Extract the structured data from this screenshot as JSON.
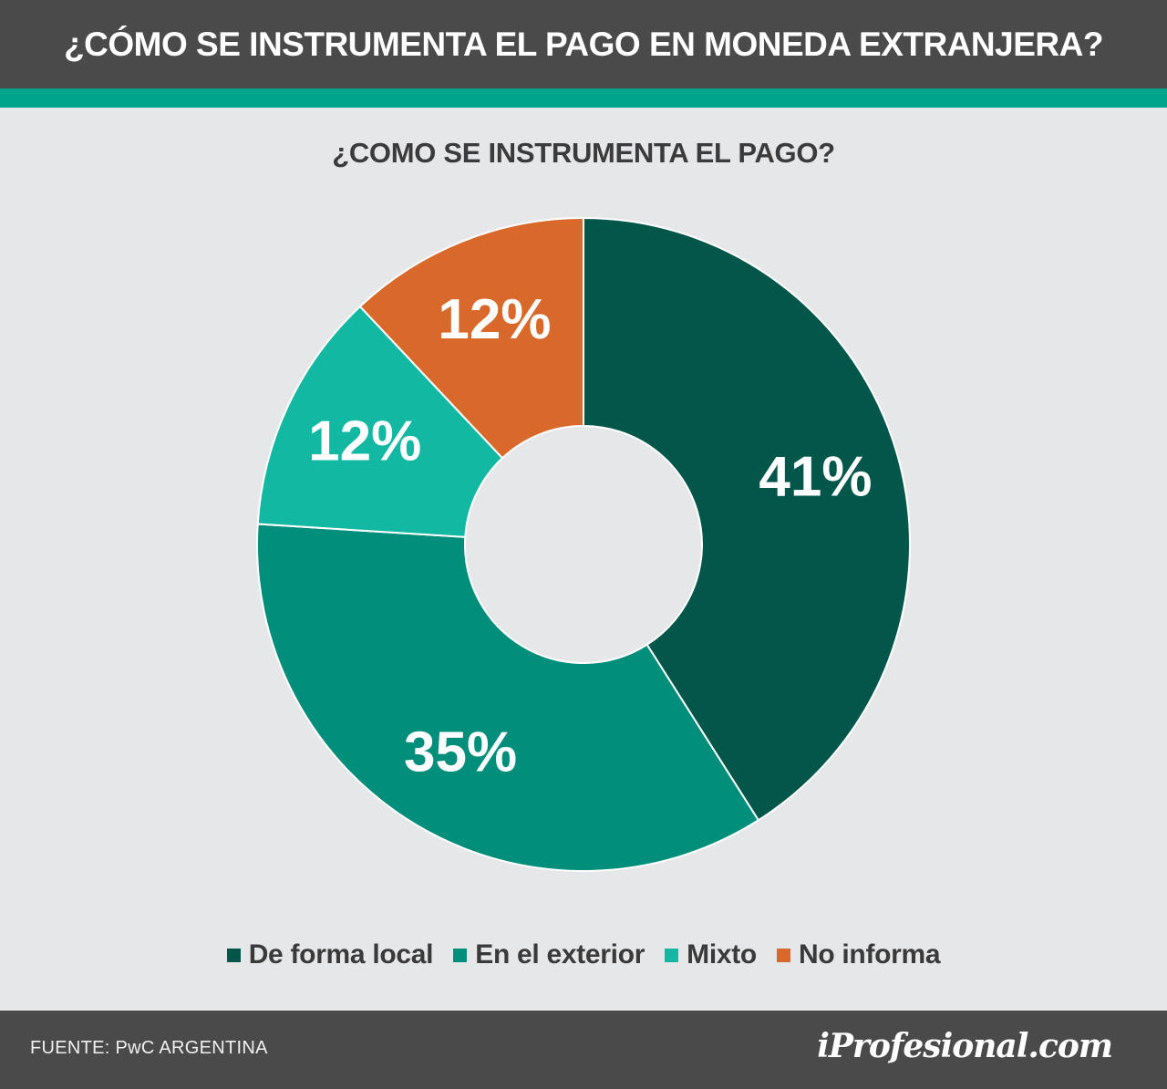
{
  "header": {
    "title": "¿CÓMO SE INSTRUMENTA EL PAGO EN MONEDA EXTRANJERA?"
  },
  "chart_data": {
    "type": "pie",
    "title": "¿COMO SE INSTRUMENTA EL PAGO?",
    "categories": [
      "De forma local",
      "En el exterior",
      "Mixto",
      "No informa"
    ],
    "values": [
      41,
      35,
      12,
      12
    ],
    "labels": [
      "41%",
      "35%",
      "12%",
      "12%"
    ],
    "colors": [
      "#02574a",
      "#018e7b",
      "#13b8a3",
      "#d8692a"
    ],
    "legend_position": "bottom"
  },
  "footer": {
    "source": "FUENTE: PwC ARGENTINA",
    "logo": "iProfesional.com"
  }
}
